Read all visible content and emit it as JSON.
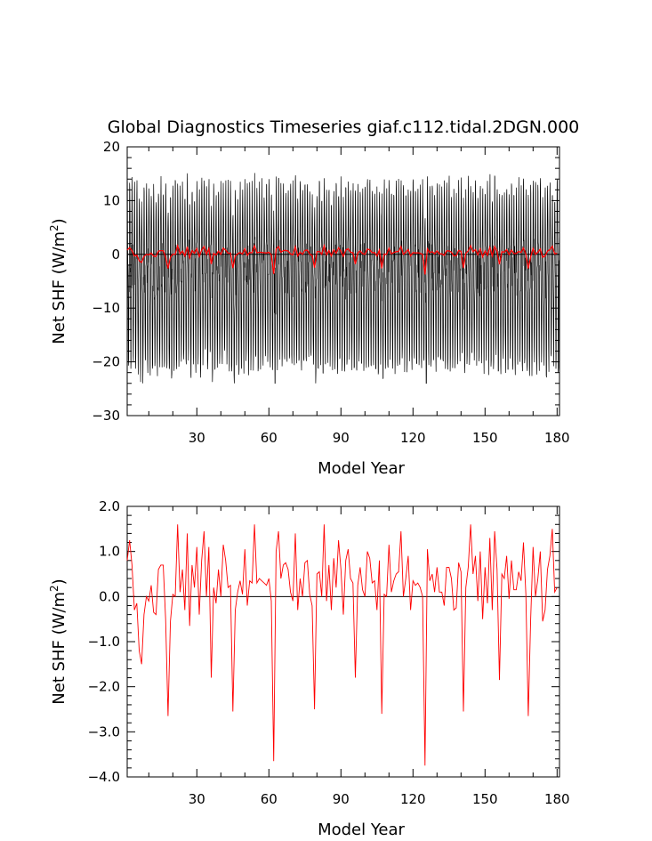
{
  "title": "Global Diagnostics Timeseries giaf.c112.tidal.2DGN.000",
  "colors": {
    "annual": "#ff0000",
    "monthly": "#000000",
    "axes": "#000000"
  },
  "chart_data": [
    {
      "type": "line",
      "xlabel": "Model Year",
      "ylabel_base": "Net SHF (W/m",
      "ylabel_sup": "2",
      "ylabel_close": ")",
      "xlim": [
        1,
        181
      ],
      "ylim": [
        -30,
        20
      ],
      "xticks": [
        30,
        60,
        90,
        120,
        150,
        180
      ],
      "yticks": [
        20,
        10,
        0,
        -10,
        -20,
        -30
      ],
      "xtick_labels": [
        "30",
        "60",
        "90",
        "120",
        "150",
        "180"
      ],
      "ytick_labels": [
        "20",
        "10",
        "0",
        "−10",
        "−20",
        "−30"
      ],
      "zero_line": true,
      "series": [
        {
          "kind": "monthly",
          "color": "#000000",
          "seasonal_max": 10.5,
          "seasonal_min": -19.0,
          "overall_max": 15.5,
          "overall_min": -24.0
        },
        {
          "kind": "annual",
          "color": "#ff0000",
          "source": "annual_values"
        }
      ]
    },
    {
      "type": "line",
      "xlabel": "Model Year",
      "ylabel_base": "Net SHF (W/m",
      "ylabel_sup": "2",
      "ylabel_close": ")",
      "xlim": [
        1,
        181
      ],
      "ylim": [
        -4.0,
        2.0
      ],
      "xticks": [
        30,
        60,
        90,
        120,
        150,
        180
      ],
      "yticks": [
        2.0,
        1.0,
        0.0,
        -1.0,
        -2.0,
        -3.0,
        -4.0
      ],
      "xtick_labels": [
        "30",
        "60",
        "90",
        "120",
        "150",
        "180"
      ],
      "ytick_labels": [
        "2.0",
        "1.0",
        "0.0",
        "−1.0",
        "−2.0",
        "−3.0",
        "−4.0"
      ],
      "zero_line": true,
      "series": [
        {
          "kind": "annual",
          "color": "#ff0000",
          "source": "annual_values"
        }
      ]
    }
  ],
  "annual_values": {
    "x_start": 1,
    "x_step": 1,
    "y": [
      0.8,
      1.25,
      0.7,
      -0.3,
      -0.15,
      -1.2,
      -1.5,
      -0.4,
      0.0,
      -0.1,
      0.25,
      -0.35,
      -0.4,
      0.6,
      0.7,
      0.7,
      -0.5,
      -2.65,
      -0.55,
      0.05,
      0.0,
      1.6,
      0.1,
      0.6,
      -0.3,
      1.4,
      -0.65,
      0.7,
      0.2,
      1.1,
      -0.4,
      0.8,
      1.45,
      0.0,
      1.1,
      -1.8,
      0.2,
      -0.15,
      0.6,
      0.0,
      1.15,
      0.8,
      0.2,
      0.25,
      -2.55,
      -0.3,
      0.1,
      0.35,
      0.05,
      1.05,
      -0.2,
      0.35,
      0.3,
      1.6,
      0.3,
      0.4,
      0.35,
      0.3,
      0.25,
      0.4,
      -0.1,
      -3.65,
      1.0,
      1.45,
      0.4,
      0.7,
      0.75,
      0.6,
      0.1,
      -0.1,
      1.4,
      -0.3,
      0.4,
      0.0,
      0.75,
      0.8,
      0.05,
      -0.2,
      -2.5,
      0.5,
      0.55,
      0.0,
      1.6,
      -0.1,
      0.7,
      -0.3,
      0.85,
      0.2,
      1.25,
      0.6,
      -0.4,
      0.8,
      1.05,
      0.4,
      0.3,
      -1.8,
      0.25,
      0.65,
      0.15,
      0.0,
      1.0,
      0.85,
      0.3,
      0.35,
      -0.3,
      0.8,
      -2.6,
      0.05,
      0.0,
      1.15,
      0.1,
      0.35,
      0.5,
      0.55,
      1.45,
      0.0,
      0.4,
      0.9,
      -0.3,
      0.35,
      0.25,
      0.3,
      0.2,
      0.0,
      -3.75,
      1.05,
      0.35,
      0.5,
      0.1,
      0.65,
      0.1,
      0.1,
      -0.2,
      0.65,
      0.65,
      0.4,
      -0.3,
      -0.25,
      0.75,
      0.55,
      -2.55,
      0.2,
      0.65,
      1.6,
      0.5,
      0.9,
      -0.1,
      1.0,
      -0.5,
      0.65,
      -0.15,
      1.3,
      -0.3,
      1.45,
      0.6,
      -1.85,
      0.5,
      0.4,
      0.9,
      -0.05,
      0.8,
      0.15,
      0.15,
      0.55,
      0.35,
      1.2,
      0.05,
      -2.65,
      -0.5,
      1.1,
      0.0,
      0.4,
      1.0,
      -0.55,
      -0.3,
      0.6,
      0.9,
      1.5,
      0.1,
      0.2
    ]
  }
}
